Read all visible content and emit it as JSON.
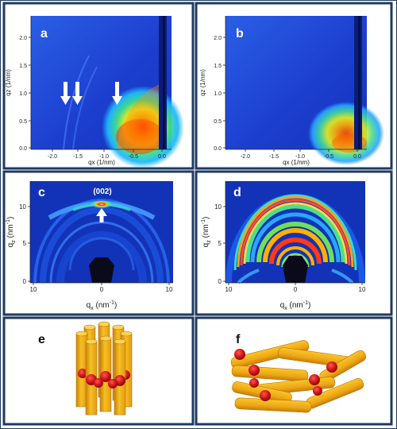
{
  "panels": {
    "a": {
      "letter": "a",
      "xlabel": "qx (1/nm)",
      "ylabel": "qz (1/nm)",
      "xticks": [
        "-2.0",
        "-1.5",
        "-1.0",
        "-0.5",
        "0.0"
      ],
      "yticks": [
        "0.0",
        "0.5",
        "1.0",
        "1.5",
        "2.0"
      ],
      "annotation_arrows": 3
    },
    "b": {
      "letter": "b",
      "xlabel": "qx (1/nm)",
      "ylabel": "qz (1/nm)",
      "xticks": [
        "-2.0",
        "-1.5",
        "-1.0",
        "-0.5",
        "0.0"
      ],
      "yticks": [
        "0.0",
        "0.5",
        "1.0",
        "1.5",
        "2.0"
      ]
    },
    "c": {
      "letter": "c",
      "peak_label": "(002)",
      "xlabel_main": "q",
      "xlabel_sub": "x",
      "xlabel_unit": " (nm",
      "xlabel_exp": "-1",
      "xlabel_close": ")",
      "ylabel_main": "q",
      "ylabel_sub": "z",
      "ylabel_unit": " (nm",
      "ylabel_exp": "-1",
      "ylabel_close": ")",
      "xticks": [
        "10",
        "0",
        "10"
      ],
      "yticks": [
        "0",
        "5",
        "10"
      ]
    },
    "d": {
      "letter": "d",
      "xlabel_main": "q",
      "xlabel_sub": "x",
      "xlabel_unit": " (nm",
      "xlabel_exp": "-1",
      "xlabel_close": ")",
      "ylabel_main": "q",
      "ylabel_sub": "z",
      "ylabel_unit": " (nm",
      "ylabel_exp": "-1",
      "ylabel_close": ")",
      "xticks": [
        "10",
        "0",
        "10"
      ],
      "yticks": [
        "0",
        "5",
        "10"
      ]
    },
    "e": {
      "letter": "e"
    },
    "f": {
      "letter": "f"
    }
  },
  "colors": {
    "frame": "#1f3a5f",
    "map_background": "#1d47d6",
    "rod_fill": "#f3b21d",
    "rod_shadow": "#d38a0c",
    "bead": "#d4161c"
  }
}
